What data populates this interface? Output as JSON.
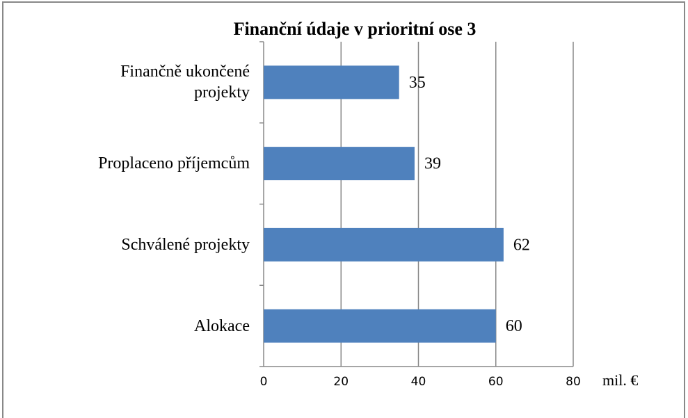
{
  "chart_data": {
    "type": "bar",
    "orientation": "horizontal",
    "title": "Finanční údaje v prioritní ose 3",
    "categories": [
      "Alokace",
      "Schválené projekty",
      "Proplaceno příjemcům",
      "Finančně ukončené projekty"
    ],
    "values": [
      60,
      62,
      39,
      35
    ],
    "color": "#4f81bd",
    "xlim": [
      0,
      80
    ],
    "xticks": [
      0,
      20,
      40,
      60,
      80
    ],
    "xlabel": "mil. €",
    "grid": true
  }
}
